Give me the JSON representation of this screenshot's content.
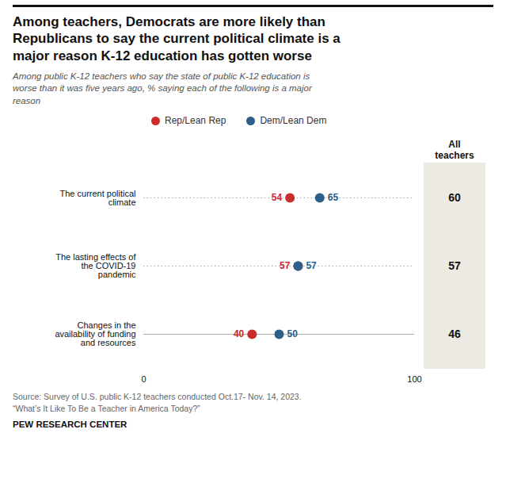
{
  "chart_data": {
    "type": "dot",
    "title": "Among teachers, Democrats are more likely than\nRepublicans to say the current political climate is a\nmajor reason K-12 education has gotten worse",
    "subtitle": "Among public K-12 teachers who say the state of public K-12 education is\nworse than it was five years ago, % saying each of the following is a major\nreason",
    "categories": [
      "The current political\nclimate",
      "The lasting effects of\nthe COVID-19\npandemic",
      "Changes in the\navailability of funding\nand resources"
    ],
    "series": [
      {
        "name": "Rep/Lean Rep",
        "color": "#cc2b2b",
        "values": [
          54,
          57,
          40
        ]
      },
      {
        "name": "Dem/Lean Dem",
        "color": "#2e5f8a",
        "values": [
          65,
          57,
          50
        ]
      },
      {
        "name": "All\nteachers",
        "type": "text",
        "color": "#ede9e3",
        "values": [
          60,
          57,
          46
        ]
      }
    ],
    "xlim": [
      0,
      100
    ],
    "xticks": [
      0,
      100
    ],
    "grid": false,
    "data_labels": true,
    "source": "Source: Survey of U.S. public K-12 teachers conducted Oct.17- Nov. 14, 2023.\n“What’s It Like To Be a Teacher in America Today?”",
    "footer": "PEW RESEARCH CENTER"
  }
}
